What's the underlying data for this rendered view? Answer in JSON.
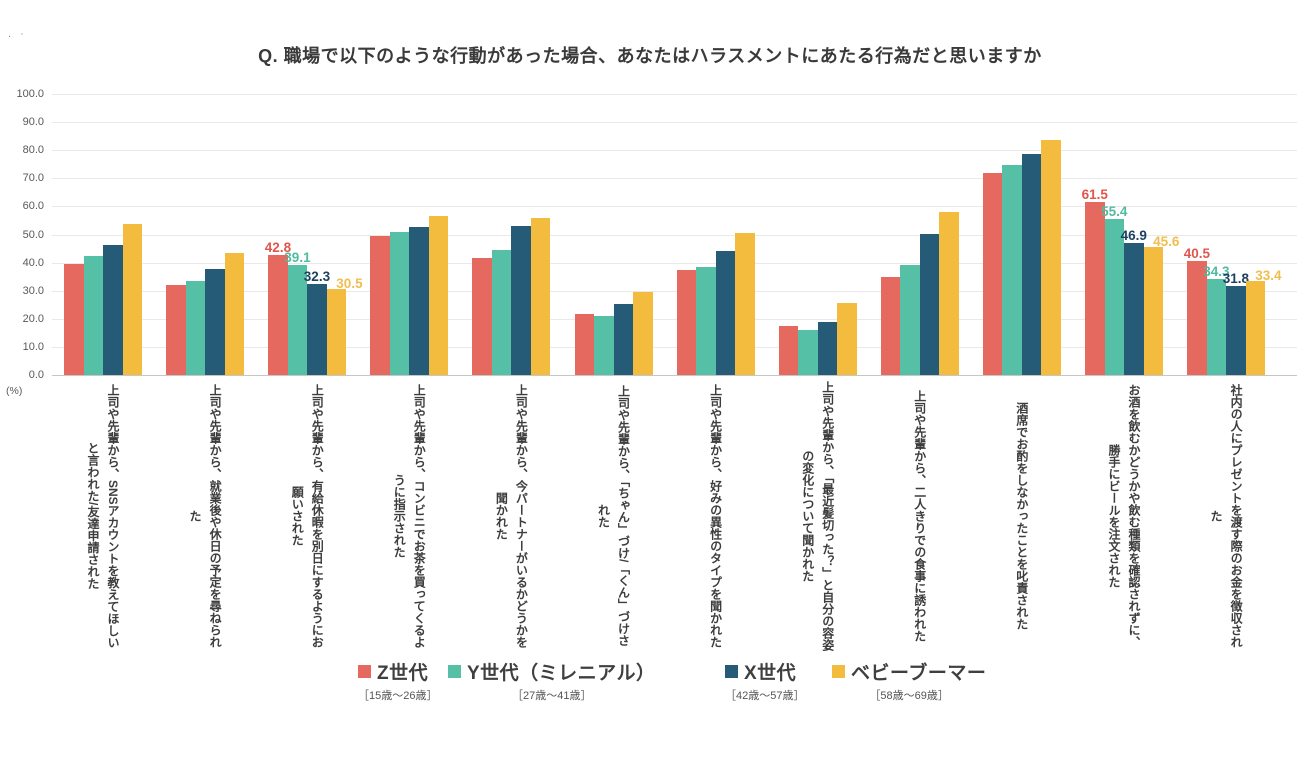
{
  "artifact_mark": ". ·",
  "chart_data": {
    "type": "bar",
    "title": "Q. 職場で以下のような行動があった場合、あなたはハラスメントにあたる行為だと思いますか",
    "ylabel_unit": "(%)",
    "ylim": [
      0,
      100
    ],
    "ytick_step": 10,
    "ytick_labels": [
      "100.0",
      "90.0",
      "80.0",
      "70.0",
      "60.0",
      "50.0",
      "40.0",
      "30.0",
      "20.0",
      "10.0",
      "0.0"
    ],
    "grid": true,
    "legend_position": "bottom",
    "categories": [
      "上司や先輩から、SNSアカウントを教えてほしいと言われた/友達申請された",
      "上司や先輩から、就業後や休日の予定を尋ねられた",
      "上司や先輩から、有給休暇を別日にするようにお願いされた",
      "上司や先輩から、コンビニでお茶を買ってくるように指示された",
      "上司や先輩から、今パートナーがいるかどうかを聞かれた",
      "上司や先輩から、「ちゃん」づけ/「くん」づけされた",
      "上司や先輩から、好みの異性のタイプを聞かれた",
      "上司や先輩から、「最近髪切った？」と自分の容姿の変化について聞かれた",
      "上司や先輩から、二人きりでの食事に誘われた",
      "酒席でお酌をしなかったことを叱責された",
      "お酒を飲むかどうかや飲む種類を確認されずに、勝手にビールを注文された",
      "社内の人にプレゼントを渡す際のお金を徴収された"
    ],
    "series": [
      {
        "name": "Z世代",
        "age_range": "［15歳～26歳］",
        "color": "#E5695E",
        "label_color": "#E0564C",
        "values": [
          39.5,
          32.2,
          42.8,
          49.3,
          41.7,
          21.8,
          37.4,
          17.6,
          34.9,
          71.9,
          61.5,
          40.5
        ]
      },
      {
        "name": "Y世代（ミレニアル）",
        "age_range": "［27歳～41歳］",
        "color": "#55C0A5",
        "label_color": "#4FBCA1",
        "values": [
          42.5,
          33.4,
          39.1,
          50.8,
          44.6,
          21.0,
          38.3,
          16.0,
          39.1,
          74.6,
          55.4,
          34.3
        ]
      },
      {
        "name": "X世代",
        "age_range": "［42歳～57歳］",
        "color": "#265B78",
        "label_color": "#1E4160",
        "values": [
          46.4,
          37.7,
          32.3,
          52.5,
          53.0,
          25.2,
          44.0,
          18.9,
          50.3,
          78.7,
          46.9,
          31.8
        ]
      },
      {
        "name": "ベビーブーマー",
        "age_range": "［58歳～69歳］",
        "color": "#F3BC3F",
        "label_color": "#EFBE4F",
        "values": [
          53.9,
          43.3,
          30.5,
          56.6,
          56.0,
          29.7,
          50.4,
          25.5,
          58.1,
          83.6,
          45.6,
          33.4
        ]
      }
    ],
    "value_labeled_category_indices": [
      2,
      10,
      11
    ]
  }
}
